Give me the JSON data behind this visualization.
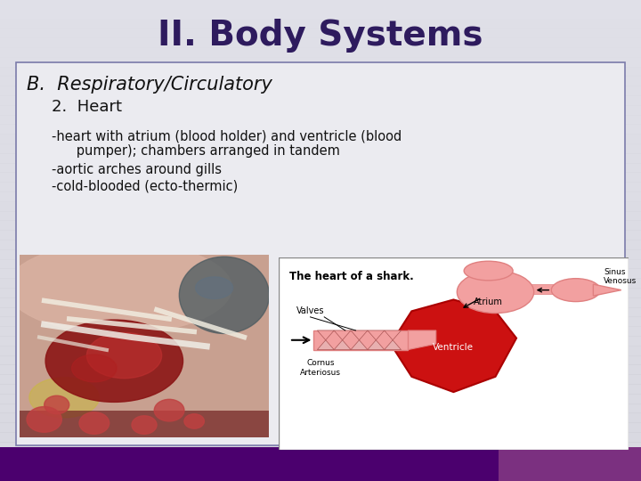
{
  "title": "II. Body Systems",
  "title_color": "#2E1B5E",
  "title_fontsize": 28,
  "bg_top": "#D8D8E0",
  "bg_bottom": "#C8C8D4",
  "slide_bg": "#E0E0E8",
  "content_bg": "#EBEBF0",
  "content_border": "#7B7BAA",
  "section_b": "B.  Respiratory/Circulatory",
  "sub2": "2.  Heart",
  "bullet1a": "-heart with atrium (blood holder) and ventricle (blood",
  "bullet1b": "      pumper); chambers arranged in tandem",
  "bullet2": "-aortic arches around gills",
  "bullet3": "-cold-blooded (ecto-thermic)",
  "text_color": "#111111",
  "diagram_title": "The heart of a shark.",
  "label_atrium": "Atrium",
  "label_sinus": "Sinus\nVenosus",
  "label_ventricle": "Ventricle",
  "label_valves": "Valves",
  "label_cornus": "Cornus\nArteriosus",
  "heart_red": "#CC1111",
  "heart_red_dark": "#AA0000",
  "heart_pink": "#F2A0A0",
  "heart_pink_dark": "#E08080",
  "bottom_bar_color": "#4B006E",
  "bottom_bar2": "#7B3080"
}
